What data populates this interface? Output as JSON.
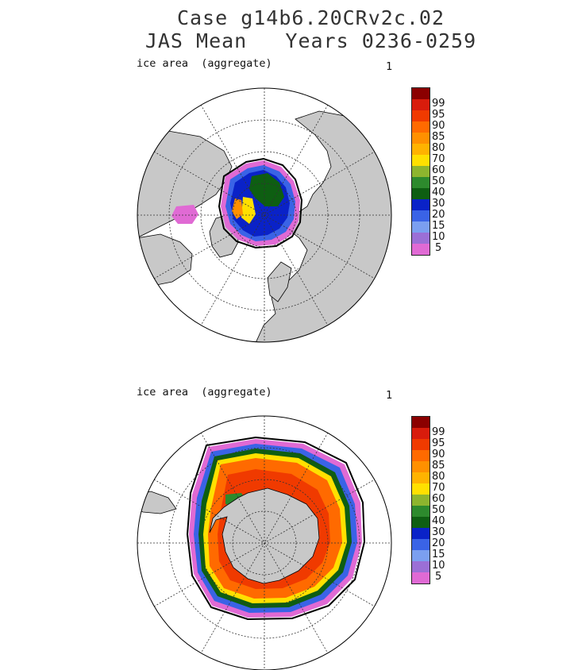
{
  "title_line1": "Case g14b6.20CRv2c.02",
  "title_line2": "JAS Mean   Years 0236-0259",
  "colors": {
    "land": "#c8c8c8",
    "ocean": "#ffffff",
    "grid": "#333333",
    "levels": [
      "#e06ad4",
      "#9b6fd6",
      "#7b9ff0",
      "#3a63e6",
      "#0a22c8",
      "#0e5e12",
      "#2d8a2d",
      "#8db52e",
      "#ffe000",
      "#ffb300",
      "#ff9000",
      "#ff6a00",
      "#f03a00",
      "#d81c0c",
      "#8b0000"
    ]
  },
  "panels": [
    {
      "hemisphere": "north",
      "label": "ice area  (aggregate)",
      "unit_marker": "1",
      "colorbar_ticks": [
        "99",
        "95",
        "90",
        "85",
        "80",
        "70",
        "60",
        "50",
        "40",
        "30",
        "20",
        "15",
        "10",
        "5"
      ]
    },
    {
      "hemisphere": "south",
      "label": "ice area  (aggregate)",
      "unit_marker": "1",
      "colorbar_ticks": [
        "99",
        "95",
        "90",
        "85",
        "80",
        "70",
        "60",
        "50",
        "40",
        "30",
        "20",
        "15",
        "10",
        "5"
      ]
    }
  ]
}
